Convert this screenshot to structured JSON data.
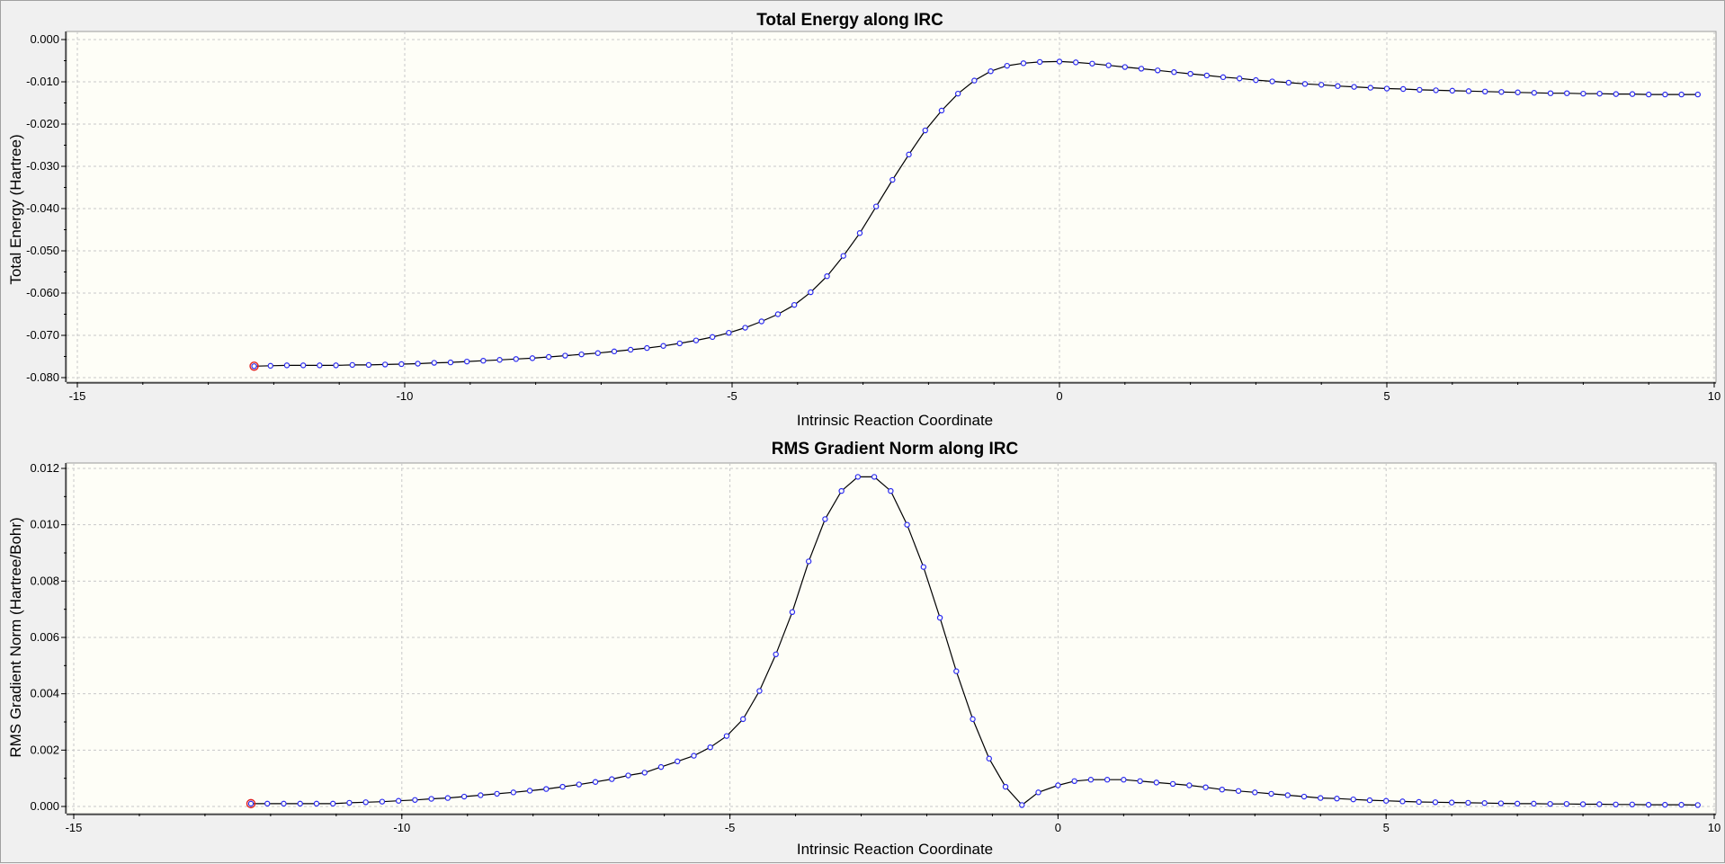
{
  "chart_data": [
    {
      "type": "line",
      "title": "Total Energy along IRC",
      "xlabel": "Intrinsic Reaction Coordinate",
      "ylabel": "Total Energy (Hartree)",
      "xlim": [
        -15,
        10
      ],
      "ylim": [
        -0.08,
        0.0
      ],
      "x_ticks": [
        "-15",
        "-10",
        "-5",
        "0",
        "5",
        "10"
      ],
      "y_ticks": [
        "0.000",
        "-0.010",
        "-0.020",
        "-0.030",
        "-0.040",
        "-0.050",
        "-0.060",
        "-0.070",
        "-0.080"
      ],
      "grid": true,
      "series": [
        {
          "x": [
            -12.3,
            -12.05,
            -11.8,
            -11.55,
            -11.3,
            -11.05,
            -10.8,
            -10.55,
            -10.3,
            -10.05,
            -9.8,
            -9.55,
            -9.3,
            -9.05,
            -8.8,
            -8.55,
            -8.3,
            -8.05,
            -7.8,
            -7.55,
            -7.3,
            -7.05,
            -6.8,
            -6.55,
            -6.3,
            -6.05,
            -5.8,
            -5.55,
            -5.3,
            -5.05,
            -4.8,
            -4.55,
            -4.3,
            -4.05,
            -3.8,
            -3.55,
            -3.3,
            -3.05,
            -2.8,
            -2.55,
            -2.3,
            -2.05,
            -1.8,
            -1.55,
            -1.3,
            -1.05,
            -0.8,
            -0.55,
            -0.3,
            0.0,
            0.25,
            0.5,
            0.75,
            1.0,
            1.25,
            1.5,
            1.75,
            2.0,
            2.25,
            2.5,
            2.75,
            3.0,
            3.25,
            3.5,
            3.75,
            4.0,
            4.25,
            4.5,
            4.75,
            5.0,
            5.25,
            5.5,
            5.75,
            6.0,
            6.25,
            6.5,
            6.75,
            7.0,
            7.25,
            7.5,
            7.75,
            8.0,
            8.25,
            8.5,
            8.75,
            9.0,
            9.25,
            9.5,
            9.75
          ],
          "y": [
            -0.0773,
            -0.0772,
            -0.0771,
            -0.0771,
            -0.0771,
            -0.0771,
            -0.077,
            -0.077,
            -0.0769,
            -0.0768,
            -0.0767,
            -0.0765,
            -0.0764,
            -0.0762,
            -0.076,
            -0.0758,
            -0.0756,
            -0.0754,
            -0.0751,
            -0.0748,
            -0.0745,
            -0.0742,
            -0.0738,
            -0.0734,
            -0.073,
            -0.0725,
            -0.0719,
            -0.0712,
            -0.0704,
            -0.0694,
            -0.0682,
            -0.0667,
            -0.065,
            -0.0628,
            -0.0598,
            -0.056,
            -0.0512,
            -0.0458,
            -0.0395,
            -0.0332,
            -0.0272,
            -0.0215,
            -0.0168,
            -0.0128,
            -0.0097,
            -0.0075,
            -0.0062,
            -0.0056,
            -0.0053,
            -0.0052,
            -0.0054,
            -0.0057,
            -0.0061,
            -0.0065,
            -0.0069,
            -0.0073,
            -0.0077,
            -0.0081,
            -0.0085,
            -0.0089,
            -0.0092,
            -0.0096,
            -0.0099,
            -0.0102,
            -0.0105,
            -0.0107,
            -0.011,
            -0.0112,
            -0.0114,
            -0.0116,
            -0.0117,
            -0.0119,
            -0.012,
            -0.0121,
            -0.0122,
            -0.0123,
            -0.0124,
            -0.0125,
            -0.0126,
            -0.0127,
            -0.0127,
            -0.0128,
            -0.0128,
            -0.0129,
            -0.0129,
            -0.013,
            -0.013,
            -0.013,
            -0.013
          ]
        }
      ]
    },
    {
      "type": "line",
      "title": "RMS Gradient Norm along IRC",
      "xlabel": "Intrinsic Reaction Coordinate",
      "ylabel": "RMS Gradient Norm (Hartree/Bohr)",
      "xlim": [
        -15,
        10
      ],
      "ylim": [
        0.0,
        0.012
      ],
      "x_ticks": [
        "-15",
        "-10",
        "-5",
        "0",
        "5",
        "10"
      ],
      "y_ticks": [
        "0.012",
        "0.010",
        "0.008",
        "0.006",
        "0.004",
        "0.002",
        "0.000"
      ],
      "grid": true,
      "series": [
        {
          "x": [
            -12.3,
            -12.05,
            -11.8,
            -11.55,
            -11.3,
            -11.05,
            -10.8,
            -10.55,
            -10.3,
            -10.05,
            -9.8,
            -9.55,
            -9.3,
            -9.05,
            -8.8,
            -8.55,
            -8.3,
            -8.05,
            -7.8,
            -7.55,
            -7.3,
            -7.05,
            -6.8,
            -6.55,
            -6.3,
            -6.05,
            -5.8,
            -5.55,
            -5.3,
            -5.05,
            -4.8,
            -4.55,
            -4.3,
            -4.05,
            -3.8,
            -3.55,
            -3.3,
            -3.05,
            -2.8,
            -2.55,
            -2.3,
            -2.05,
            -1.8,
            -1.55,
            -1.3,
            -1.05,
            -0.8,
            -0.55,
            -0.3,
            0.0,
            0.25,
            0.5,
            0.75,
            1.0,
            1.25,
            1.5,
            1.75,
            2.0,
            2.25,
            2.5,
            2.75,
            3.0,
            3.25,
            3.5,
            3.75,
            4.0,
            4.25,
            4.5,
            4.75,
            5.0,
            5.25,
            5.5,
            5.75,
            6.0,
            6.25,
            6.5,
            6.75,
            7.0,
            7.25,
            7.5,
            7.75,
            8.0,
            8.25,
            8.5,
            8.75,
            9.0,
            9.25,
            9.5,
            9.75
          ],
          "y": [
            0.0001,
            0.0001,
            0.0001,
            0.0001,
            0.0001,
            0.0001,
            0.00013,
            0.00015,
            0.00017,
            0.0002,
            0.00023,
            0.00027,
            0.0003,
            0.00035,
            0.0004,
            0.00045,
            0.0005,
            0.00056,
            0.00062,
            0.0007,
            0.00078,
            0.00087,
            0.00097,
            0.0011,
            0.0012,
            0.0014,
            0.0016,
            0.0018,
            0.0021,
            0.0025,
            0.0031,
            0.0041,
            0.0054,
            0.0069,
            0.0087,
            0.0102,
            0.0112,
            0.0117,
            0.0117,
            0.0112,
            0.01,
            0.0085,
            0.0067,
            0.0048,
            0.0031,
            0.0017,
            0.0007,
            5e-05,
            0.0005,
            0.00075,
            0.0009,
            0.00095,
            0.00095,
            0.00095,
            0.0009,
            0.00085,
            0.0008,
            0.00075,
            0.00068,
            0.0006,
            0.00055,
            0.0005,
            0.00045,
            0.0004,
            0.00035,
            0.0003,
            0.00028,
            0.00025,
            0.00022,
            0.0002,
            0.00018,
            0.00016,
            0.00015,
            0.00014,
            0.00013,
            0.00012,
            0.00011,
            0.0001,
            0.0001,
            9e-05,
            9e-05,
            8e-05,
            8e-05,
            7e-05,
            7e-05,
            6e-05,
            6e-05,
            6e-05,
            5e-05
          ]
        }
      ]
    }
  ]
}
